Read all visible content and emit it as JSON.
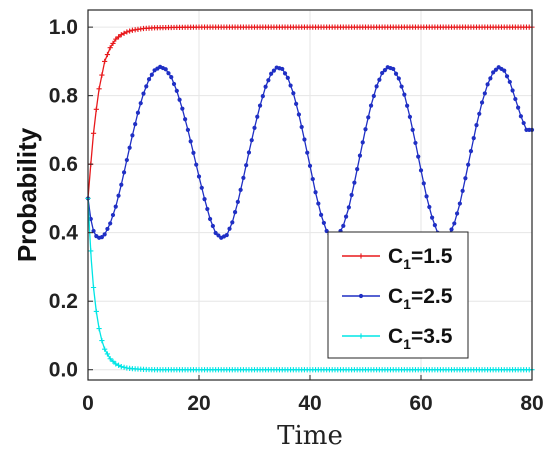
{
  "chart_data": {
    "type": "line",
    "title": "",
    "xlabel": "Time",
    "ylabel": "Probability",
    "xlim": [
      0,
      80
    ],
    "ylim": [
      -0.03,
      1.05
    ],
    "xticks": [
      "0",
      "20",
      "40",
      "60",
      "80"
    ],
    "yticks": [
      "0.0",
      "0.2",
      "0.4",
      "0.6",
      "0.8",
      "1.0"
    ],
    "grid": true,
    "legend_position": "lower-right",
    "series": [
      {
        "name": "C1=1.5",
        "legend_main": "C",
        "legend_sub": "1",
        "legend_value": "=1.5",
        "color": "#e8191c",
        "marker": "plus",
        "x": [
          0,
          0.5,
          1,
          1.5,
          2,
          2.5,
          3,
          4,
          5,
          6,
          7,
          8,
          10,
          12,
          15,
          20,
          25,
          30,
          40,
          50,
          60,
          70,
          80
        ],
        "y": [
          0.5,
          0.6,
          0.69,
          0.76,
          0.82,
          0.86,
          0.9,
          0.94,
          0.965,
          0.978,
          0.986,
          0.991,
          0.996,
          0.998,
          0.999,
          1.0,
          1.0,
          1.0,
          1.0,
          1.0,
          1.0,
          1.0,
          1.0
        ]
      },
      {
        "name": "C1=2.5",
        "legend_main": "C",
        "legend_sub": "1",
        "legend_value": "=2.5",
        "color": "#1f2fc4",
        "marker": "dot",
        "x": [
          0,
          0.5,
          1,
          1.5,
          2,
          2.5,
          3,
          4,
          5,
          6,
          7,
          8,
          9,
          10,
          11,
          12,
          13,
          14,
          15,
          16,
          17,
          18,
          19,
          20,
          21,
          22,
          23,
          24,
          25,
          26,
          27,
          28,
          29,
          30,
          31,
          32,
          33,
          34,
          35,
          36,
          37,
          38,
          39,
          40,
          41,
          42,
          43,
          44,
          45,
          46,
          47,
          48,
          49,
          50,
          51,
          52,
          53,
          54,
          55,
          56,
          57,
          58,
          59,
          60,
          61,
          62,
          63,
          64,
          65,
          66,
          67,
          68,
          69,
          70,
          71,
          72,
          73,
          74,
          75,
          76,
          77,
          78,
          79,
          80
        ],
        "y": [
          0.5,
          0.44,
          0.405,
          0.39,
          0.385,
          0.387,
          0.395,
          0.427,
          0.476,
          0.54,
          0.612,
          0.684,
          0.75,
          0.806,
          0.848,
          0.874,
          0.884,
          0.877,
          0.854,
          0.814,
          0.762,
          0.7,
          0.633,
          0.564,
          0.498,
          0.44,
          0.399,
          0.385,
          0.393,
          0.43,
          0.49,
          0.56,
          0.634,
          0.706,
          0.771,
          0.826,
          0.864,
          0.882,
          0.878,
          0.852,
          0.807,
          0.745,
          0.672,
          0.595,
          0.518,
          0.452,
          0.405,
          0.386,
          0.39,
          0.42,
          0.474,
          0.546,
          0.625,
          0.702,
          0.771,
          0.827,
          0.866,
          0.883,
          0.878,
          0.85,
          0.803,
          0.738,
          0.662,
          0.582,
          0.506,
          0.444,
          0.4,
          0.385,
          0.392,
          0.427,
          0.485,
          0.559,
          0.638,
          0.714,
          0.78,
          0.833,
          0.868,
          0.883,
          0.873,
          0.84,
          0.79,
          0.74,
          0.7,
          0.7
        ]
      },
      {
        "name": "C1=3.5",
        "legend_main": "C",
        "legend_sub": "1",
        "legend_value": "=3.5",
        "color": "#00e5e5",
        "marker": "plus",
        "x": [
          0,
          0.3,
          0.6,
          1,
          1.5,
          2,
          2.5,
          3,
          4,
          5,
          6,
          7,
          8,
          10,
          12,
          15,
          20,
          25,
          30,
          40,
          50,
          60,
          70,
          80
        ],
        "y": [
          0.5,
          0.4,
          0.32,
          0.24,
          0.17,
          0.12,
          0.085,
          0.06,
          0.032,
          0.017,
          0.009,
          0.005,
          0.003,
          0.001,
          0.0,
          0.0,
          0.0,
          0.0,
          0.0,
          0.0,
          0.0,
          0.0,
          0.0,
          0.0
        ]
      }
    ]
  }
}
